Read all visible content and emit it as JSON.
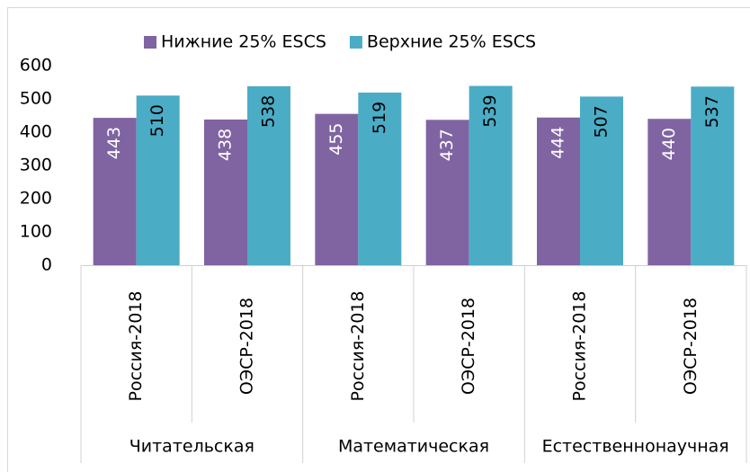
{
  "chart_data": {
    "type": "bar",
    "categories": [
      "Россия-2018",
      "ОЭСР-2018",
      "Россия-2018",
      "ОЭСР-2018",
      "Россия-2018",
      "ОЭСР-2018"
    ],
    "category_groups": [
      "Читательская",
      "Математическая",
      "Естественнонаучная"
    ],
    "series": [
      {
        "name": "Нижние 25% ESCS",
        "color": "#8064a2",
        "label_color": "#ffffff",
        "values": [
          443,
          438,
          455,
          437,
          444,
          440
        ]
      },
      {
        "name": "Верхние 25% ESCS",
        "color": "#4bacc6",
        "label_color": "#000000",
        "values": [
          510,
          538,
          519,
          539,
          507,
          537
        ]
      }
    ],
    "ylim": [
      0,
      600
    ],
    "yticks": [
      0,
      100,
      200,
      300,
      400,
      500,
      600
    ],
    "grid": false,
    "legend": "top"
  }
}
